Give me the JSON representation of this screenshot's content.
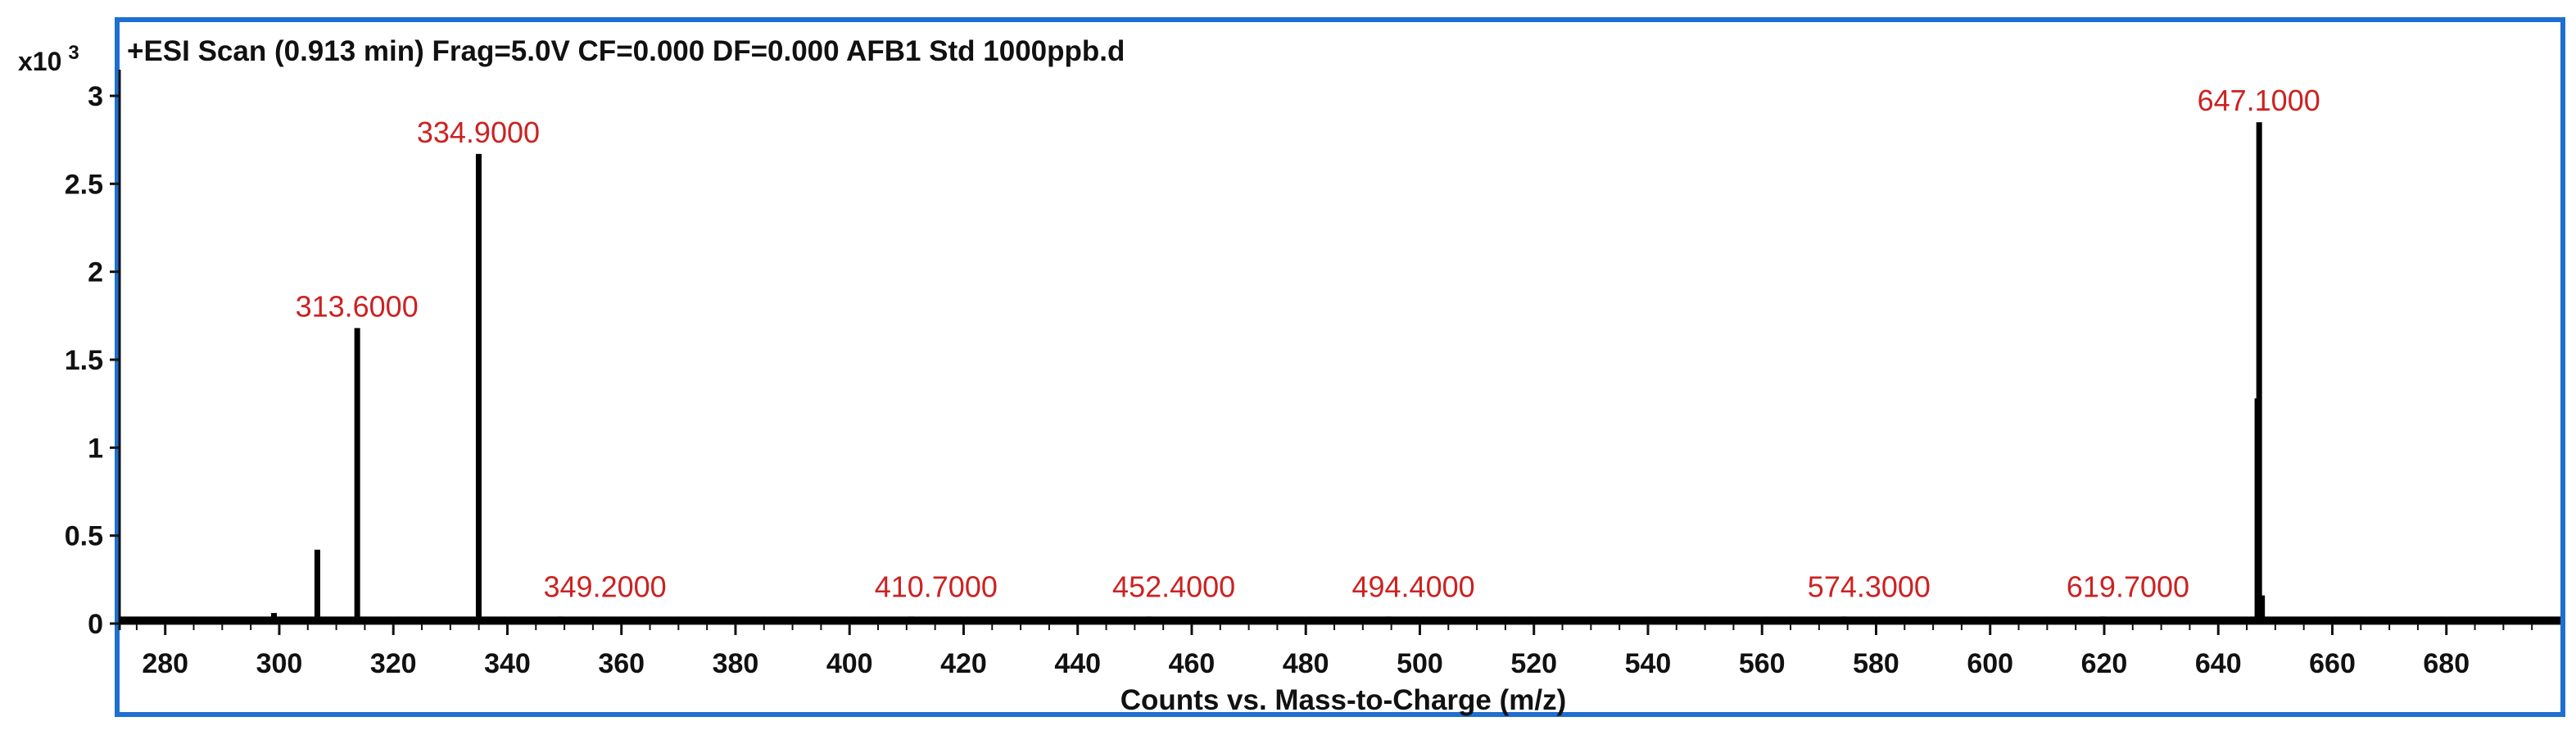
{
  "chart_data": {
    "type": "bar",
    "title": "+ESI Scan (0.913 min) Frag=5.0V CF=0.000 DF=0.000 AFB1 Std 1000ppb.d",
    "xlabel": "Counts vs. Mass-to-Charge (m/z)",
    "ylabel": "",
    "y_multiplier_base": "x10",
    "y_multiplier_exponent": "3",
    "xlim": [
      272,
      700
    ],
    "ylim": [
      0,
      3.2
    ],
    "x_ticks": [
      280,
      300,
      320,
      340,
      360,
      380,
      400,
      420,
      440,
      460,
      480,
      500,
      520,
      540,
      560,
      580,
      600,
      620,
      640,
      660,
      680
    ],
    "y_ticks": [
      0,
      0.5,
      1,
      1.5,
      2,
      2.5,
      3
    ],
    "y_tick_labels": [
      "0",
      "0.5",
      "1",
      "1.5",
      "2",
      "2.5",
      "3"
    ],
    "grid": false,
    "frame_color": "#1e6fd0",
    "bar_color": "#000000",
    "label_color": "#cc2222",
    "series": [
      {
        "x": [
          299.0,
          306.6,
          313.6,
          334.9,
          349.2,
          410.7,
          452.4,
          494.4,
          574.3,
          619.7,
          646.8,
          647.1,
          647.6
        ],
        "values": [
          0.06,
          0.42,
          1.68,
          2.67,
          0.04,
          0.04,
          0.04,
          0.04,
          0.04,
          0.04,
          1.28,
          2.85,
          0.16
        ]
      }
    ],
    "baseline": {
      "x_start": 272,
      "x_end": 700,
      "value": 0.04
    },
    "peak_labels": [
      {
        "x": 313.6,
        "y": 1.68,
        "text": "313.6000"
      },
      {
        "x": 334.9,
        "y": 2.67,
        "text": "334.9000"
      },
      {
        "x": 349.2,
        "y": 0.04,
        "text": "349.2000"
      },
      {
        "x": 410.7,
        "y": 0.04,
        "text": "410.7000"
      },
      {
        "x": 452.4,
        "y": 0.04,
        "text": "452.4000"
      },
      {
        "x": 494.4,
        "y": 0.04,
        "text": "494.4000"
      },
      {
        "x": 574.3,
        "y": 0.04,
        "text": "574.3000"
      },
      {
        "x": 619.7,
        "y": 0.04,
        "text": "619.7000"
      },
      {
        "x": 647.1,
        "y": 2.85,
        "text": "647.1000"
      }
    ]
  }
}
